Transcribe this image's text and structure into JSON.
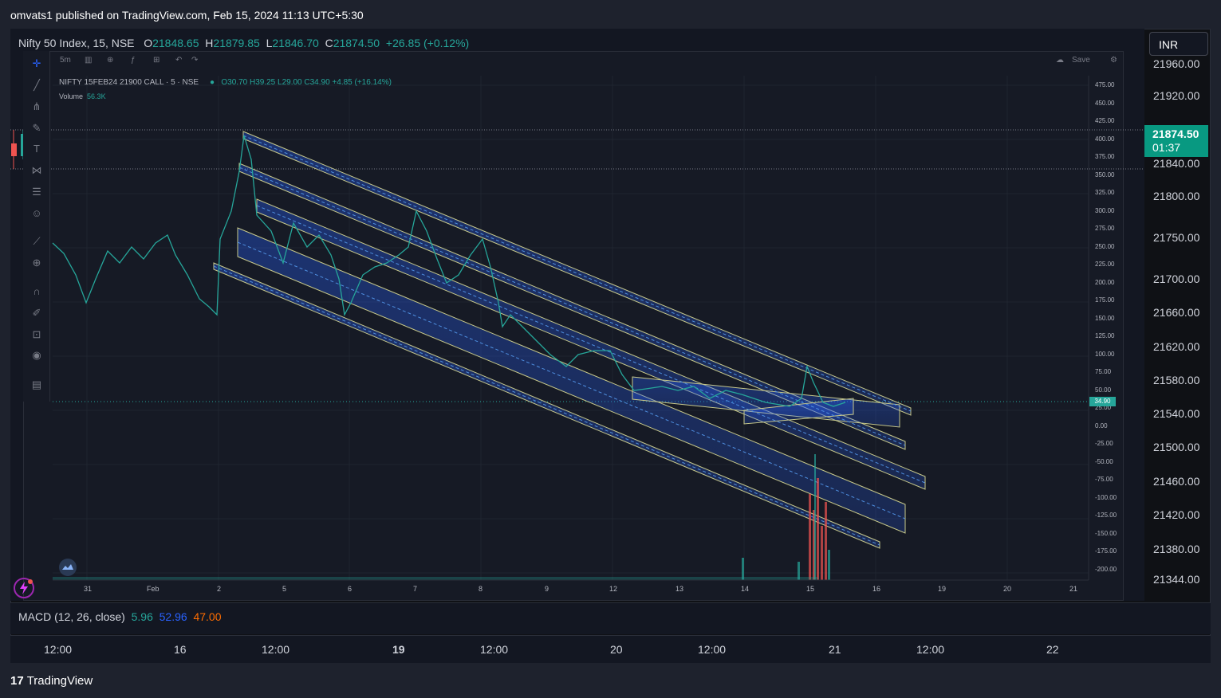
{
  "publish": {
    "text": "omvats1 published on TradingView.com, Feb 15, 2024 11:13 UTC+5:30"
  },
  "symbol": {
    "name": "Nifty 50 Index, 15, NSE",
    "o_label": "O",
    "o": "21848.65",
    "h_label": "H",
    "h": "21879.85",
    "l_label": "L",
    "l": "21846.70",
    "c_label": "C",
    "c": "21874.50",
    "change": "+26.85 (+0.12%)"
  },
  "currency_button": "INR",
  "price_axis": {
    "ticks": [
      "21960.00",
      "21920.00",
      "21840.00",
      "21800.00",
      "21750.00",
      "21700.00",
      "21660.00",
      "21620.00",
      "21580.00",
      "21540.00",
      "21500.00",
      "21460.00",
      "21420.00",
      "21380.00",
      "21344.00"
    ],
    "last_price": "21874.50",
    "countdown": "01:37"
  },
  "colors": {
    "up": "#26a69a",
    "down": "#ef5350",
    "bg": "#131722",
    "channel_line": "#c8c98a",
    "channel_fill": "#2962ff",
    "tag": "#089981"
  },
  "embedded_chart": {
    "toolbar": {
      "interval": "5m",
      "save": "Save"
    },
    "legend": {
      "name": "NIFTY 15FEB24 21900 CALL · 5 · NSE",
      "o": "O30.70",
      "h": "H39.25",
      "l": "L29.00",
      "c": "C34.90",
      "change": "+4.85 (+16.14%)"
    },
    "volume": {
      "label": "Volume",
      "value": "56.3K"
    },
    "axis_ticks": [
      "475.00",
      "450.00",
      "425.00",
      "400.00",
      "375.00",
      "350.00",
      "325.00",
      "300.00",
      "275.00",
      "250.00",
      "225.00",
      "200.00",
      "175.00",
      "150.00",
      "125.00",
      "100.00",
      "75.00",
      "50.00",
      "25.00",
      "0.00",
      "-25.00",
      "-50.00",
      "-75.00",
      "-100.00",
      "-125.00",
      "-150.00",
      "-175.00",
      "-200.00"
    ],
    "last_price": "34.90",
    "dates": [
      "31",
      "Feb",
      "2",
      "5",
      "6",
      "7",
      "8",
      "9",
      "12",
      "13",
      "14",
      "15",
      "16",
      "19",
      "20",
      "21"
    ],
    "tools": [
      "crosshair-icon",
      "trend-line-icon",
      "fib-icon",
      "brush-icon",
      "text-icon",
      "pattern-icon",
      "measure-icon",
      "emoji-icon",
      "ruler-icon",
      "zoom-icon",
      "magnet-icon",
      "lock-drawing-icon",
      "lock-icon",
      "eye-icon",
      "trash-icon"
    ]
  },
  "macd": {
    "label": "MACD (12, 26, close)",
    "v1": "5.96",
    "v2": "52.96",
    "v3": "47.00"
  },
  "time_axis": [
    "12:00",
    "16",
    "12:00",
    "19",
    "12:00",
    "20",
    "12:00",
    "21",
    "12:00",
    "22"
  ],
  "brand": "TradingView"
}
